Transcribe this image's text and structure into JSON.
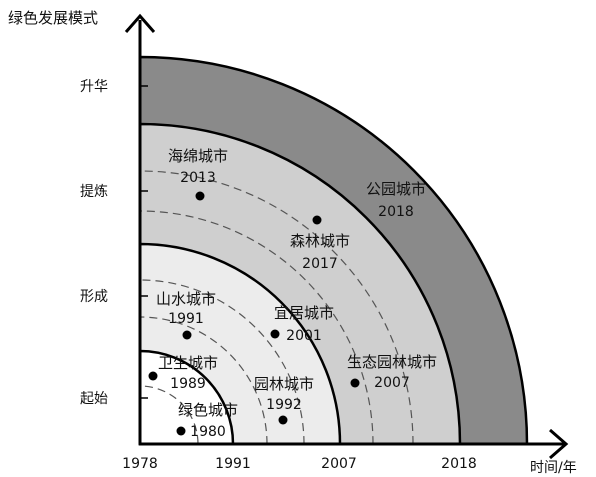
{
  "y_axis": {
    "title": "绿色发展模式",
    "stages": [
      "起始",
      "形成",
      "提炼",
      "升华"
    ]
  },
  "x_axis": {
    "title": "时间/年",
    "ticks": [
      "1978",
      "1991",
      "2007",
      "2018"
    ]
  },
  "colors": {
    "band_outer": "#8a8a8a",
    "band_3": "#cfcfcf",
    "band_2": "#ececec",
    "band_1": "#ffffff",
    "dot": "#000000",
    "stroke": "#000000"
  },
  "cities": [
    {
      "name": "绿色城市",
      "year": "1980"
    },
    {
      "name": "卫生城市",
      "year": "1989"
    },
    {
      "name": "山水城市",
      "year": "1991"
    },
    {
      "name": "园林城市",
      "year": "1992"
    },
    {
      "name": "宜居城市",
      "year": "2001"
    },
    {
      "name": "生态园林城市",
      "year": "2007"
    },
    {
      "name": "森林城市",
      "year": "2017"
    },
    {
      "name": "海绵城市",
      "year": "2013"
    },
    {
      "name": "公园城市",
      "year": "2018"
    }
  ]
}
